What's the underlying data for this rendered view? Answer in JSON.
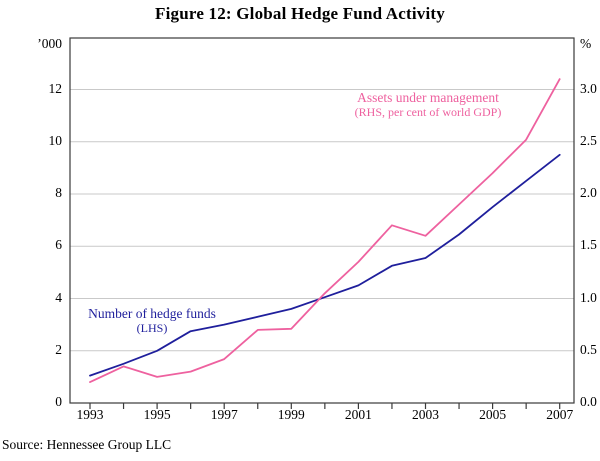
{
  "title": "Figure 12: Global Hedge Fund Activity",
  "footer": {
    "source": "Source: Hennessee Group LLC"
  },
  "colors": {
    "funds_line": "#1f1f9c",
    "aum_line": "#ee619f",
    "grid": "#c9c9c9",
    "axis": "#3a3a3a",
    "text": "#000000"
  },
  "chart_data": {
    "type": "line",
    "title": "Figure 12: Global Hedge Fund Activity",
    "x": [
      1993,
      1994,
      1995,
      1996,
      1997,
      1998,
      1999,
      2000,
      2001,
      2002,
      2003,
      2004,
      2005,
      2006,
      2007
    ],
    "xtick_labels": [
      "1993",
      "1995",
      "1997",
      "1999",
      "2001",
      "2003",
      "2005",
      "2007"
    ],
    "grid": true,
    "axes": {
      "left": {
        "unit": "’000",
        "tick_labels": [
          "0",
          "2",
          "4",
          "6",
          "8",
          "10",
          "12"
        ],
        "tick_values": [
          0,
          2,
          4,
          6,
          8,
          10,
          12
        ],
        "range": [
          0,
          13.9
        ]
      },
      "right": {
        "unit": "%",
        "tick_labels": [
          "0.0",
          "0.5",
          "1.0",
          "1.5",
          "2.0",
          "2.5",
          "3.0"
        ],
        "tick_values": [
          0.0,
          0.5,
          1.0,
          1.5,
          2.0,
          2.5,
          3.0
        ],
        "range": [
          0,
          3.475
        ]
      }
    },
    "series": [
      {
        "name": "Number of hedge funds",
        "axis": "LHS",
        "unit": "thousands",
        "color": "#1f1f9c",
        "values": [
          1.05,
          1.5,
          2.0,
          2.75,
          3.0,
          3.3,
          3.6,
          4.05,
          4.5,
          5.25,
          5.55,
          6.45,
          7.5,
          8.5,
          9.5
        ],
        "annotation_line1": "Number of hedge funds",
        "annotation_line2": "(LHS)"
      },
      {
        "name": "Assets under management",
        "axis": "RHS",
        "unit": "per cent of world GDP",
        "color": "#ee619f",
        "values": [
          0.2,
          0.35,
          0.25,
          0.3,
          0.42,
          0.7,
          0.71,
          1.05,
          1.35,
          1.7,
          1.6,
          1.9,
          2.2,
          2.52,
          3.1
        ],
        "annotation_line1": "Assets under management",
        "annotation_line2": "(RHS, per cent of world GDP)"
      }
    ],
    "legend_position": "inline annotations"
  }
}
